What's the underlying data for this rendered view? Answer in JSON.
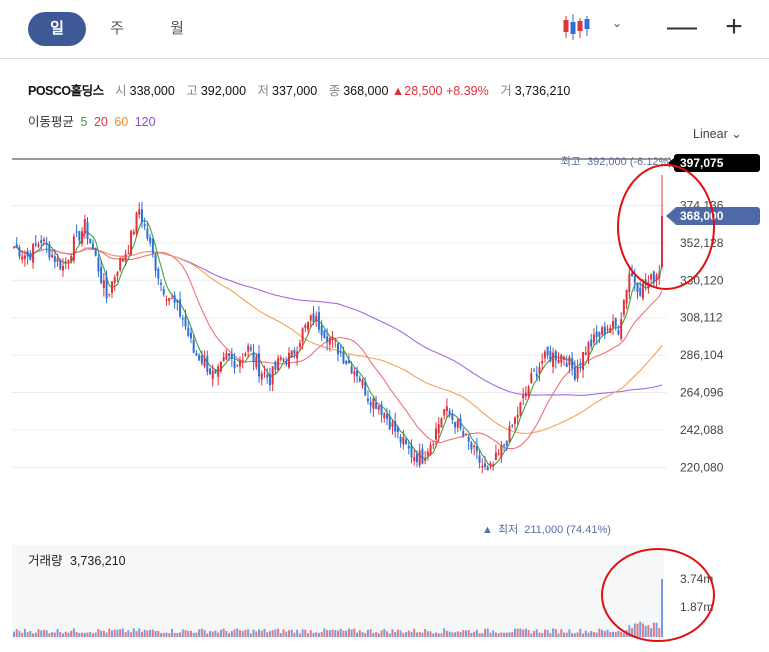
{
  "tabs": [
    {
      "label": "일",
      "active": true
    },
    {
      "label": "주",
      "active": false
    },
    {
      "label": "월",
      "active": false
    }
  ],
  "toolbar": {
    "chart_type_icon": "candlestick-icon",
    "zoom_out_icon": "minus-icon",
    "zoom_in_icon": "plus-icon",
    "dropdown_icon": "chevron-down-icon"
  },
  "stock": {
    "name": "POSCO홀딩스",
    "open_label": "시",
    "open": "338,000",
    "high_label": "고",
    "high": "392,000",
    "low_label": "저",
    "low": "337,000",
    "close_label": "종",
    "close": "368,000",
    "change": "▲28,500",
    "change_pct": "+8.39%",
    "volume_label": "거",
    "volume": "3,736,210"
  },
  "moving_average": {
    "label": "이동평균",
    "periods": [
      {
        "period": "5",
        "color": "#3fa142"
      },
      {
        "period": "20",
        "color": "#e0323c"
      },
      {
        "period": "60",
        "color": "#f08a24"
      },
      {
        "period": "120",
        "color": "#8e4ad8"
      }
    ]
  },
  "scale_mode": "Linear",
  "colors": {
    "up": "#e0323c",
    "down": "#2f6fd6",
    "ma5": "#3fa142",
    "ma20": "#f0707a",
    "ma60": "#f3a25a",
    "ma120": "#a46be0",
    "current_badge": "#4d6aa6",
    "max_badge": "#000000",
    "annotation": "#e01010"
  },
  "chart_data": {
    "type": "candlestick",
    "price_axis": {
      "ticks": [
        220080,
        242088,
        264096,
        286104,
        308112,
        330120,
        352128,
        374136
      ],
      "tick_labels": [
        "220,080",
        "242,088",
        "264,096",
        "286,104",
        "308,112",
        "330,120",
        "352,128",
        "374,136"
      ],
      "range": [
        211000,
        397075
      ]
    },
    "current_price_label": "368,000",
    "current_price": 368000,
    "top_label": "397,075",
    "top_value": 397075,
    "high_marker": {
      "label": "최고",
      "value": 392000,
      "text": "392,000 (-6.12%)"
    },
    "low_marker": {
      "label": "최저",
      "value": 211000,
      "text": "211,000 (74.41%)"
    },
    "close_path": [
      [
        0,
        350000
      ],
      [
        5,
        344000
      ],
      [
        10,
        354000
      ],
      [
        14,
        345000
      ],
      [
        18,
        338000
      ],
      [
        22,
        352000
      ],
      [
        26,
        362000
      ],
      [
        30,
        343000
      ],
      [
        34,
        320000
      ],
      [
        38,
        338000
      ],
      [
        42,
        350000
      ],
      [
        46,
        372000
      ],
      [
        50,
        350000
      ],
      [
        54,
        328000
      ],
      [
        58,
        318000
      ],
      [
        62,
        308000
      ],
      [
        66,
        288000
      ],
      [
        70,
        282000
      ],
      [
        74,
        272000
      ],
      [
        78,
        285000
      ],
      [
        82,
        282000
      ],
      [
        86,
        290000
      ],
      [
        90,
        278000
      ],
      [
        94,
        272000
      ],
      [
        98,
        284000
      ],
      [
        102,
        285000
      ],
      [
        106,
        300000
      ],
      [
        110,
        308000
      ],
      [
        114,
        300000
      ],
      [
        118,
        292000
      ],
      [
        122,
        283000
      ],
      [
        126,
        276000
      ],
      [
        130,
        262000
      ],
      [
        134,
        257000
      ],
      [
        138,
        247000
      ],
      [
        142,
        236000
      ],
      [
        146,
        228000
      ],
      [
        150,
        226000
      ],
      [
        154,
        238000
      ],
      [
        158,
        254000
      ],
      [
        162,
        247000
      ],
      [
        166,
        236000
      ],
      [
        170,
        226000
      ],
      [
        174,
        216000
      ],
      [
        178,
        227000
      ],
      [
        182,
        240000
      ],
      [
        186,
        256000
      ],
      [
        190,
        272000
      ],
      [
        194,
        283000
      ],
      [
        198,
        286000
      ],
      [
        202,
        286000
      ],
      [
        206,
        276000
      ],
      [
        210,
        290000
      ],
      [
        214,
        296000
      ],
      [
        218,
        303000
      ],
      [
        222,
        302000
      ],
      [
        226,
        335000
      ],
      [
        230,
        325000
      ],
      [
        234,
        330000
      ],
      [
        236,
        334000
      ],
      [
        238,
        340000
      ]
    ],
    "volume": {
      "label": "거래량",
      "value": "3,736,210",
      "ticks": [
        "3.74m",
        "1.87m"
      ],
      "max": 3736210
    }
  }
}
